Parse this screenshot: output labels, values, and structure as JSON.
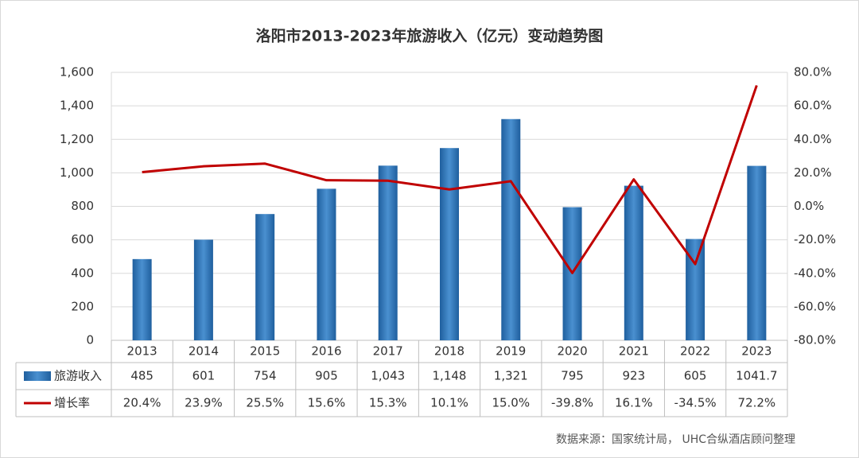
{
  "chart_data": {
    "type": "bar-line-table",
    "title": "洛阳市2013-2023年旅游收入（亿元）变动趋势图",
    "source": "数据来源：国家统计局， UHC合纵酒店顾问整理",
    "categories": [
      "2013",
      "2014",
      "2015",
      "2016",
      "2017",
      "2018",
      "2019",
      "2020",
      "2021",
      "2022",
      "2023"
    ],
    "series": [
      {
        "name": "旅游收入",
        "type": "bar",
        "color": "#2e75b6",
        "values": [
          485,
          601,
          754,
          905,
          1043,
          1148,
          1321,
          795,
          923,
          605,
          1041.7
        ],
        "value_labels": [
          "485",
          "601",
          "754",
          "905",
          "1,043",
          "1,148",
          "1,321",
          "795",
          "923",
          "605",
          "1041.7"
        ]
      },
      {
        "name": "增长率",
        "type": "line",
        "axis": "y2",
        "color": "#c00000",
        "values": [
          20.4,
          23.9,
          25.5,
          15.6,
          15.3,
          10.1,
          15.0,
          -39.8,
          16.1,
          -34.5,
          72.2
        ],
        "value_labels": [
          "20.4%",
          "23.9%",
          "25.5%",
          "15.6%",
          "15.3%",
          "10.1%",
          "15.0%",
          "-39.8%",
          "16.1%",
          "-34.5%",
          "72.2%"
        ]
      }
    ],
    "ylim": [
      0,
      1600
    ],
    "yticks": [
      0,
      200,
      400,
      600,
      800,
      {
        "value": 1000,
        "label": "1,000"
      },
      {
        "value": 1200,
        "label": "1,200"
      },
      {
        "value": 1400,
        "label": "1,400"
      },
      {
        "value": 1600,
        "label": "1,600"
      }
    ],
    "y2lim": [
      -80,
      80
    ],
    "y2ticks": [
      {
        "value": -80,
        "label": "-80.0%"
      },
      {
        "value": -60,
        "label": "-60.0%"
      },
      {
        "value": -40,
        "label": "-40.0%"
      },
      {
        "value": -20,
        "label": "-20.0%"
      },
      {
        "value": 0,
        "label": "0.0%"
      },
      {
        "value": 20,
        "label": "20.0%"
      },
      {
        "value": 40,
        "label": "40.0%"
      },
      {
        "value": 60,
        "label": "60.0%"
      },
      {
        "value": 80,
        "label": "80.0%"
      }
    ],
    "grid": true
  }
}
